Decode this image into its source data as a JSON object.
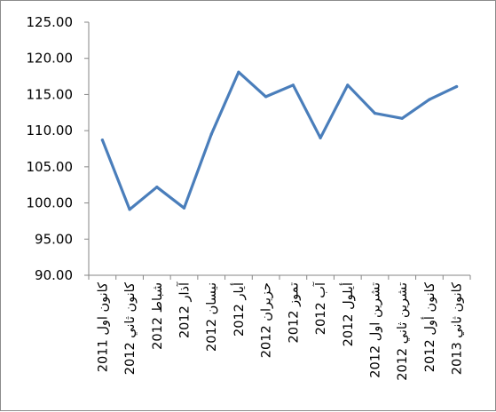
{
  "chart_data": {
    "type": "line",
    "categories": [
      "كانون اول 2011",
      "كانون ثاني 2012",
      "شباط 2012",
      "آذار 2012",
      "نيسان 2012",
      "أيار 2012",
      "حزيران 2012",
      "تموز 2012",
      "آب 2012",
      "أيلول 2012",
      "تشرين اول 2012",
      "تشرين ثاني 2012",
      "كانون أول 2012",
      "كانون ثاني 2013"
    ],
    "series": [
      {
        "values": [
          108.7,
          99.1,
          102.2,
          99.3,
          109.5,
          118.1,
          114.7,
          116.3,
          109.0,
          116.3,
          112.4,
          111.7,
          114.3,
          116.1
        ],
        "color": "#4a7ebb"
      }
    ],
    "yticks": [
      "90.00",
      "95.00",
      "100.00",
      "105.00",
      "110.00",
      "115.00",
      "120.00",
      "125.00"
    ],
    "ylim": [
      90,
      125
    ],
    "grid": false,
    "legend": "none",
    "title": "",
    "xlabel": "",
    "ylabel": ""
  }
}
